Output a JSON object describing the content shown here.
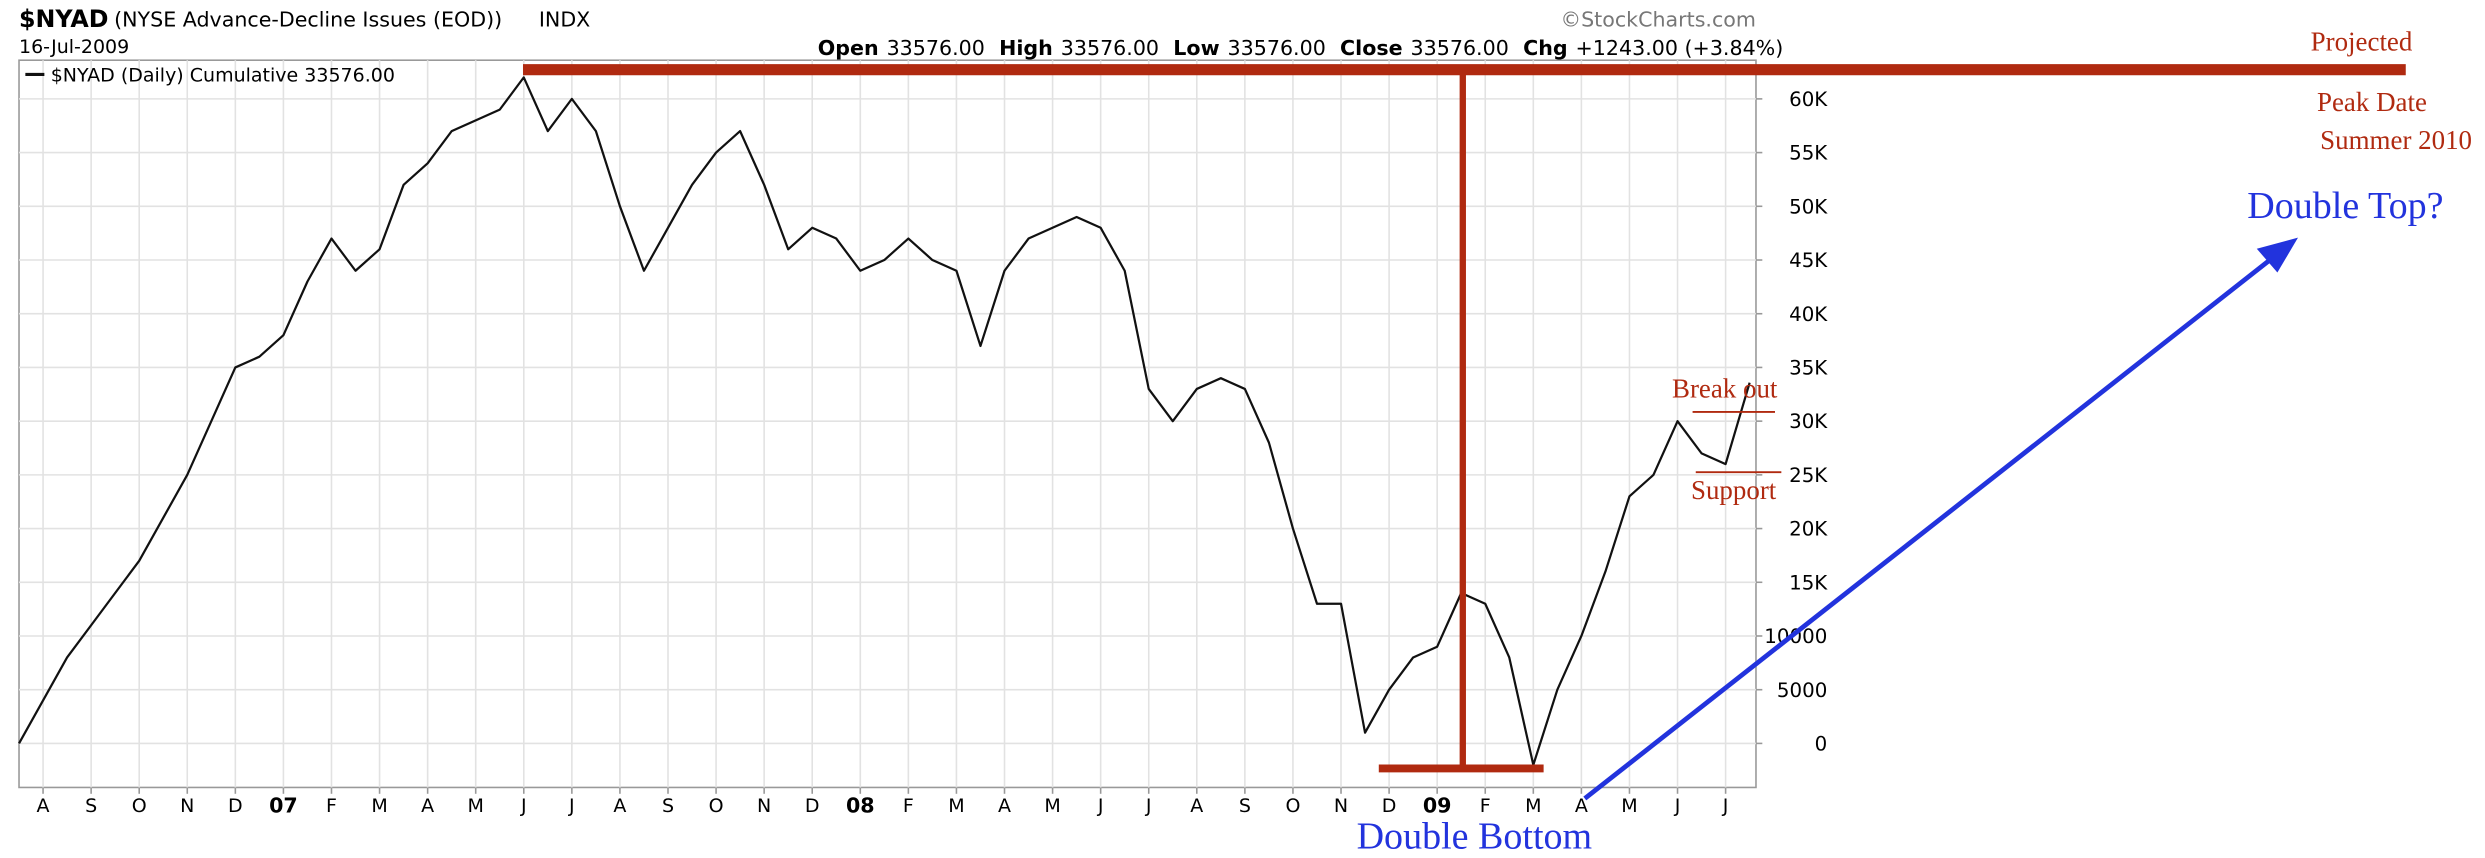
{
  "chart_data": {
    "type": "line",
    "header": {
      "symbol": "$NYAD",
      "name": "(NYSE Advance-Decline Issues (EOD))",
      "exchange": "INDX",
      "date": "16-Jul-2009",
      "source": "©StockCharts.com",
      "quote": [
        {
          "label": "Open",
          "value": "33576.00"
        },
        {
          "label": "High",
          "value": "33576.00"
        },
        {
          "label": "Low",
          "value": "33576.00"
        },
        {
          "label": "Close",
          "value": "33576.00"
        },
        {
          "label": "Chg",
          "value": "+1243.00 (+3.84%)"
        }
      ]
    },
    "categories": [
      null,
      "A",
      null,
      "S",
      null,
      "O",
      null,
      "N",
      null,
      "D",
      null,
      "07",
      null,
      "F",
      null,
      "M",
      null,
      "A",
      null,
      "M",
      null,
      "J",
      null,
      "J",
      null,
      "A",
      null,
      "S",
      null,
      "O",
      null,
      "N",
      null,
      "D",
      null,
      "08",
      null,
      "F",
      null,
      "M",
      null,
      "A",
      null,
      "M",
      null,
      "J",
      null,
      "J",
      null,
      "A",
      null,
      "S",
      null,
      "O",
      null,
      "N",
      null,
      "D",
      null,
      "09",
      null,
      "F",
      null,
      "M",
      null,
      "A",
      null,
      "M",
      null,
      "J",
      null,
      "J",
      null
    ],
    "series": [
      {
        "name": "$NYAD (Daily) Cumulative 33576.00",
        "color": "#111111",
        "values": [
          0,
          4000,
          8000,
          11000,
          14000,
          17000,
          21000,
          25000,
          30000,
          35000,
          36000,
          38000,
          43000,
          47000,
          44000,
          46000,
          52000,
          54000,
          57000,
          58000,
          59000,
          62000,
          57000,
          60000,
          57000,
          50000,
          44000,
          48000,
          52000,
          55000,
          57000,
          52000,
          46000,
          48000,
          47000,
          44000,
          45000,
          47000,
          45000,
          44000,
          37000,
          44000,
          47000,
          48000,
          49000,
          48000,
          44000,
          33000,
          30000,
          33000,
          34000,
          33000,
          28000,
          20000,
          13000,
          13000,
          1000,
          5000,
          8000,
          9000,
          14000,
          13000,
          8000,
          -2000,
          5000,
          10000,
          16000,
          23000,
          25000,
          30000,
          27000,
          26000,
          33576
        ]
      }
    ],
    "ylim": [
      -4100,
      63600
    ],
    "yticks": [
      0,
      5000,
      10000,
      {
        "value": 15000,
        "label": "15K"
      },
      {
        "value": 20000,
        "label": "20K"
      },
      {
        "value": 25000,
        "label": "25K"
      },
      {
        "value": 30000,
        "label": "30K"
      },
      {
        "value": 35000,
        "label": "35K"
      },
      {
        "value": 40000,
        "label": "40K"
      },
      {
        "value": 45000,
        "label": "45K"
      },
      {
        "value": 50000,
        "label": "50K"
      },
      {
        "value": 55000,
        "label": "55K"
      },
      {
        "value": 60000,
        "label": "60K"
      }
    ],
    "grid": true,
    "annotations": {
      "projected": "Projected",
      "peak_date": "Peak Date",
      "summer": "Summer 2010",
      "double_top": "Double Top?",
      "break_out": "Break out",
      "support": "Support",
      "double_bottom": "Double Bottom"
    }
  }
}
